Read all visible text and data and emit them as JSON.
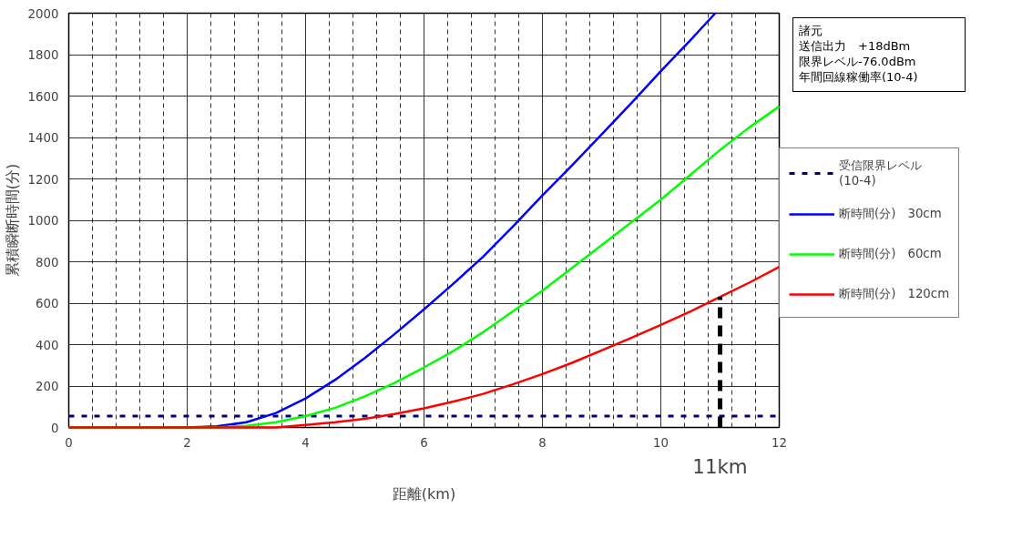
{
  "chart_data": {
    "type": "line",
    "xlabel": "距離(km)",
    "ylabel": "累積瞬断時間(分)",
    "xlim": [
      0,
      12
    ],
    "xticks": [
      0,
      2,
      4,
      6,
      8,
      10,
      12
    ],
    "ylim": [
      0,
      2000
    ],
    "yticks": [
      0,
      200,
      400,
      600,
      800,
      1000,
      1200,
      1400,
      1600,
      1800,
      2000
    ],
    "grid": true,
    "legend": "right",
    "line_style": "solid",
    "marker": "none",
    "series": [
      {
        "name": "断時間(分)　30cm",
        "color": "#0000ff",
        "x": [
          0,
          2,
          2.5,
          3,
          3.5,
          4,
          4.5,
          5,
          5.5,
          6,
          6.5,
          7,
          7.5,
          8,
          8.5,
          9,
          9.5,
          10,
          10.5,
          10.92
        ],
        "values": [
          0,
          0,
          5,
          25,
          70,
          140,
          230,
          335,
          450,
          570,
          695,
          825,
          970,
          1120,
          1265,
          1415,
          1565,
          1720,
          1870,
          2000
        ]
      },
      {
        "name": "断時間(分)　60cm",
        "color": "#00ff00",
        "x": [
          0,
          2.5,
          3,
          3.5,
          4,
          4.5,
          5,
          5.5,
          6,
          6.5,
          7,
          7.5,
          8,
          8.5,
          9,
          9.5,
          10,
          10.5,
          11,
          11.5,
          12
        ],
        "values": [
          0,
          0,
          8,
          25,
          55,
          95,
          150,
          215,
          290,
          370,
          460,
          560,
          660,
          770,
          880,
          990,
          1100,
          1220,
          1340,
          1450,
          1550
        ]
      },
      {
        "name": "断時間(分)　120cm",
        "color": "#ff0000",
        "x": [
          0,
          3.5,
          4,
          4.5,
          5,
          5.5,
          6,
          6.5,
          7,
          7.5,
          8,
          8.5,
          9,
          9.5,
          10,
          10.5,
          11,
          11.5,
          12
        ],
        "values": [
          0,
          0,
          12,
          25,
          42,
          65,
          92,
          125,
          162,
          208,
          258,
          312,
          372,
          432,
          495,
          560,
          630,
          700,
          775
        ]
      },
      {
        "color": "#000000",
        "line_style": "dashed",
        "x": [
          11,
          11
        ],
        "values": [
          0,
          630
        ]
      }
    ],
    "ref_lines": [
      {
        "axis": "y",
        "value": 55,
        "label": "受信限界レベル\n(10-4)",
        "color": "#000080",
        "line_style": "dotted"
      }
    ],
    "annotations": [
      "諸元",
      "送信出力　+18dBm",
      "限界レベル-76.0dBm",
      "年間回線稼働率(10-4)",
      {
        "text": "11km",
        "x": 11,
        "y": 0
      }
    ]
  }
}
